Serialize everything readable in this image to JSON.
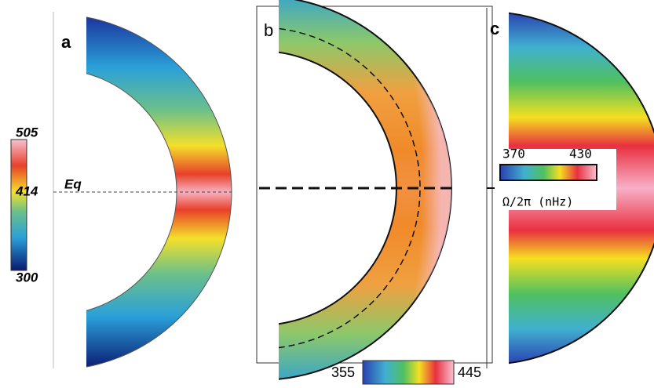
{
  "panels": [
    {
      "label": "a",
      "colorbar": {
        "max": "505",
        "mid": "414",
        "min": "300"
      },
      "equator": "Eq"
    },
    {
      "label": "b",
      "colorbar": {
        "min": "355",
        "max": "445"
      }
    },
    {
      "label": "c",
      "colorbar": {
        "min": "370",
        "max": "430",
        "unit": "Ω/2π (nHz)"
      }
    }
  ]
}
